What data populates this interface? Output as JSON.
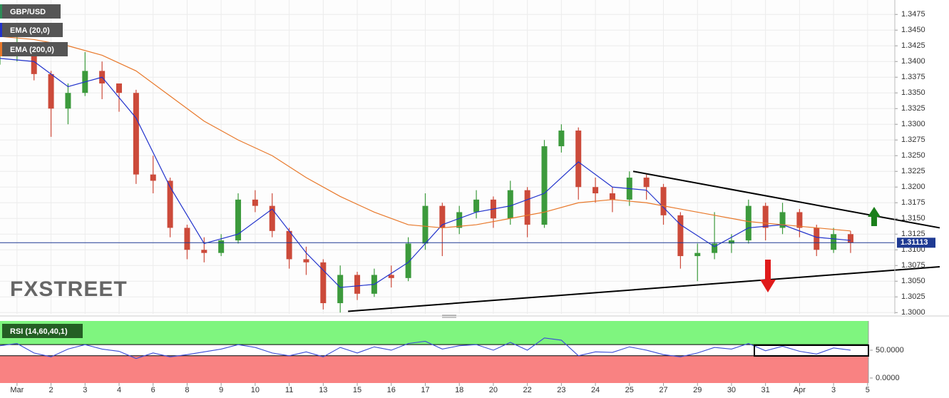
{
  "chart_data": [
    {
      "type": "candlestick",
      "name": "GBP/USD",
      "x": [
        -0.5,
        0,
        0.5,
        1,
        1.5,
        2,
        2.5,
        3,
        3.5,
        4,
        4.5,
        5,
        5.5,
        6,
        6.5,
        7,
        7.5,
        8,
        8.5,
        9,
        9.5,
        10,
        10.5,
        11,
        11.5,
        12,
        12.5,
        13,
        13.5,
        14,
        14.5,
        15,
        15.5,
        16,
        16.5,
        17,
        17.5,
        18,
        18.5,
        19,
        19.5,
        20,
        20.5,
        21,
        21.5,
        22,
        22.5,
        23,
        23.5,
        24,
        24.5
      ],
      "open": [
        1.341,
        1.3415,
        1.3425,
        1.338,
        1.3325,
        1.335,
        1.3385,
        1.3365,
        1.335,
        1.322,
        1.321,
        1.3135,
        1.31,
        1.3095,
        1.3115,
        1.318,
        1.317,
        1.313,
        1.3085,
        1.308,
        1.3015,
        1.306,
        1.303,
        1.306,
        1.3055,
        1.311,
        1.317,
        1.3135,
        1.316,
        1.318,
        1.315,
        1.3195,
        1.314,
        1.3265,
        1.329,
        1.32,
        1.319,
        1.318,
        1.3215,
        1.32,
        1.3155,
        1.309,
        1.3095,
        1.311,
        1.3115,
        1.317,
        1.3135,
        1.316,
        1.3135,
        1.31,
        1.3125
      ],
      "high": [
        1.343,
        1.344,
        1.343,
        1.3385,
        1.3365,
        1.3415,
        1.34,
        1.336,
        1.3355,
        1.325,
        1.3215,
        1.314,
        1.312,
        1.3125,
        1.319,
        1.3195,
        1.319,
        1.3135,
        1.3105,
        1.3085,
        1.3075,
        1.3065,
        1.307,
        1.3075,
        1.312,
        1.319,
        1.3175,
        1.317,
        1.3195,
        1.3185,
        1.321,
        1.32,
        1.3275,
        1.33,
        1.3295,
        1.3215,
        1.32,
        1.3225,
        1.322,
        1.3205,
        1.316,
        1.311,
        1.316,
        1.3125,
        1.318,
        1.3175,
        1.3175,
        1.3165,
        1.314,
        1.3135,
        1.313
      ],
      "low": [
        1.3395,
        1.34,
        1.337,
        1.328,
        1.33,
        1.3345,
        1.334,
        1.332,
        1.3205,
        1.319,
        1.312,
        1.3085,
        1.308,
        1.309,
        1.311,
        1.316,
        1.312,
        1.307,
        1.306,
        1.3005,
        1.3,
        1.302,
        1.3025,
        1.304,
        1.305,
        1.31,
        1.309,
        1.3125,
        1.315,
        1.3135,
        1.314,
        1.312,
        1.3135,
        1.3255,
        1.318,
        1.3175,
        1.316,
        1.317,
        1.318,
        1.314,
        1.307,
        1.305,
        1.3085,
        1.3095,
        1.311,
        1.3115,
        1.3125,
        1.312,
        1.309,
        1.3095,
        1.3095
      ],
      "close": [
        1.3415,
        1.3425,
        1.338,
        1.3325,
        1.335,
        1.3385,
        1.3365,
        1.335,
        1.322,
        1.321,
        1.3135,
        1.31,
        1.3095,
        1.3115,
        1.318,
        1.317,
        1.313,
        1.3085,
        1.308,
        1.3015,
        1.306,
        1.303,
        1.306,
        1.3055,
        1.311,
        1.317,
        1.3135,
        1.316,
        1.318,
        1.315,
        1.3195,
        1.314,
        1.3265,
        1.329,
        1.32,
        1.319,
        1.318,
        1.3215,
        1.32,
        1.3155,
        1.309,
        1.3095,
        1.311,
        1.3115,
        1.317,
        1.3135,
        1.316,
        1.3135,
        1.31,
        1.3125,
        1.3111
      ],
      "color": "#2e8b57",
      "color_up": "#3c9a3c",
      "color_down": "#cc4a3a",
      "series": [
        {
          "name": "EMA (20,0)",
          "color": "#2233cc",
          "x": [
            -0.5,
            0.5,
            1.5,
            2.5,
            3.5,
            4.5,
            5.5,
            6.5,
            7.5,
            8.5,
            9.5,
            10.5,
            11.5,
            12.5,
            13.5,
            14.5,
            15.5,
            16.5,
            17.5,
            18.5,
            19.5,
            20.5,
            21.5,
            22.5,
            23.5,
            24.5
          ],
          "values": [
            1.3405,
            1.34,
            1.336,
            1.3375,
            1.331,
            1.32,
            1.311,
            1.3125,
            1.3165,
            1.3095,
            1.304,
            1.3045,
            1.308,
            1.314,
            1.316,
            1.317,
            1.319,
            1.324,
            1.32,
            1.3195,
            1.314,
            1.3105,
            1.3135,
            1.314,
            1.312,
            1.3115
          ]
        },
        {
          "name": "EMA (200,0)",
          "color": "#e8782a",
          "x": [
            -0.5,
            0.5,
            1.5,
            2.5,
            3.5,
            4.5,
            5.5,
            6.5,
            7.5,
            8.5,
            9.5,
            10.5,
            11.5,
            12.5,
            13.5,
            14.5,
            15.5,
            16.5,
            17.5,
            18.5,
            19.5,
            20.5,
            21.5,
            22.5,
            23.5,
            24.5
          ],
          "values": [
            1.344,
            1.3435,
            1.3425,
            1.341,
            1.3385,
            1.3345,
            1.3305,
            1.3275,
            1.325,
            1.3215,
            1.3185,
            1.316,
            1.314,
            1.3135,
            1.314,
            1.315,
            1.316,
            1.3175,
            1.318,
            1.3175,
            1.3165,
            1.3155,
            1.3145,
            1.314,
            1.3135,
            1.313
          ]
        }
      ],
      "trend_lines": [
        {
          "x": [
            18.11,
            27.12
          ],
          "y": [
            1.3225,
            1.3135
          ],
          "color": "#000000"
        },
        {
          "x": [
            9.73,
            27.12
          ],
          "y": [
            1.3002,
            1.3073
          ],
          "color": "#000000"
        }
      ],
      "last_price": 1.31113,
      "last_price_color": "#1f3a93",
      "watermark": "FXSTREET",
      "xlim": [
        -0.5,
        25.8
      ],
      "ylim": [
        1.2998,
        1.3498
      ],
      "yticks": [
        {
          "value": 1.3,
          "label": "1.3000"
        },
        1.3025,
        {
          "value": 1.305,
          "label": "1.3050"
        },
        1.3075,
        {
          "value": 1.31,
          "label": "1.3100"
        },
        1.3125,
        {
          "value": 1.315,
          "label": "1.3150"
        },
        1.3175,
        {
          "value": 1.32,
          "label": "1.3200"
        },
        1.3225,
        {
          "value": 1.325,
          "label": "1.3250"
        },
        1.3275,
        {
          "value": 1.33,
          "label": "1.3300"
        },
        1.3325,
        {
          "value": 1.335,
          "label": "1.3350"
        },
        1.3375,
        {
          "value": 1.34,
          "label": "1.3400"
        },
        1.3425,
        {
          "value": 1.345,
          "label": "1.3450"
        },
        1.3475
      ],
      "xticks": [
        {
          "value": 0,
          "label": "Mar"
        },
        {
          "value": 1,
          "label": "2"
        },
        {
          "value": 2,
          "label": "3"
        },
        {
          "value": 3,
          "label": "4"
        },
        {
          "value": 4,
          "label": "6"
        },
        {
          "value": 5,
          "label": "8"
        },
        {
          "value": 6,
          "label": "9"
        },
        {
          "value": 7,
          "label": "10"
        },
        {
          "value": 8,
          "label": "11"
        },
        {
          "value": 9,
          "label": "13"
        },
        {
          "value": 10,
          "label": "15"
        },
        {
          "value": 11,
          "label": "16"
        },
        {
          "value": 12,
          "label": "17"
        },
        {
          "value": 13,
          "label": "18"
        },
        {
          "value": 14,
          "label": "20"
        },
        {
          "value": 15,
          "label": "22"
        },
        {
          "value": 16,
          "label": "23"
        },
        {
          "value": 17,
          "label": "24"
        },
        {
          "value": 18,
          "label": "25"
        },
        {
          "value": 19,
          "label": "27"
        },
        {
          "value": 20,
          "label": "29"
        },
        {
          "value": 21,
          "label": "30"
        },
        {
          "value": 22,
          "label": "31"
        },
        {
          "value": 23,
          "label": "Apr"
        },
        {
          "value": 24,
          "label": "3"
        },
        {
          "value": 25,
          "label": "5"
        }
      ],
      "grid": true
    },
    {
      "type": "line",
      "series": [
        {
          "name": "RSI (14,60,40,1)",
          "color": "#3a4bd6",
          "values": [
            58,
            62,
            45,
            38,
            52,
            60,
            52,
            48,
            35,
            45,
            38,
            42,
            47,
            52,
            60,
            55,
            45,
            40,
            47,
            38,
            55,
            45,
            56,
            50,
            62,
            66,
            52,
            58,
            60,
            50,
            64,
            50,
            72,
            68,
            40,
            47,
            46,
            56,
            50,
            42,
            38,
            45,
            55,
            52,
            62,
            49,
            57,
            48,
            43,
            54,
            50
          ]
        }
      ],
      "levels": [
        60,
        40
      ],
      "upper_zone_color": "#7ff57f",
      "lower_zone_color": "#f98282",
      "xlim": [
        -0.5,
        25.8
      ],
      "ylim": [
        -9,
        102.5
      ],
      "yticks": [
        {
          "value": 0,
          "label": "0.0000"
        },
        {
          "value": 50,
          "label": "50.0000"
        }
      ]
    }
  ]
}
